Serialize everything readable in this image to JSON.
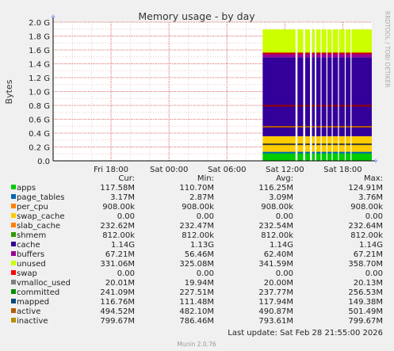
{
  "chart_data": {
    "type": "area",
    "title": "Memory usage - by day",
    "ylabel": "Bytes",
    "xlabel": "",
    "watermark": "RRDTOOL / TOBI OETIKER",
    "footer": "Munin 2.0.76",
    "last_update": "Last update: Sat Feb 28 21:55:00 2026",
    "ylim": [
      0,
      2.0
    ],
    "yunit": "G",
    "yticks": [
      {
        "v": 0.0,
        "label": "0.0"
      },
      {
        "v": 0.2,
        "label": "0.2 G"
      },
      {
        "v": 0.4,
        "label": "0.4 G"
      },
      {
        "v": 0.6,
        "label": "0.6 G"
      },
      {
        "v": 0.8,
        "label": "0.8 G"
      },
      {
        "v": 1.0,
        "label": "1.0 G"
      },
      {
        "v": 1.2,
        "label": "1.2 G"
      },
      {
        "v": 1.4,
        "label": "1.4 G"
      },
      {
        "v": 1.6,
        "label": "1.6 G"
      },
      {
        "v": 1.8,
        "label": "1.8 G"
      },
      {
        "v": 2.0,
        "label": "2.0 G"
      }
    ],
    "xlim_hours": [
      -30,
      3
    ],
    "xticks": [
      {
        "h": -24,
        "label": "Fri 18:00"
      },
      {
        "h": -18,
        "label": "Sat 00:00"
      },
      {
        "h": -12,
        "label": "Sat 06:00"
      },
      {
        "h": -6,
        "label": "Sat 12:00"
      },
      {
        "h": 0,
        "label": "Sat 18:00"
      }
    ],
    "data_start_hours": -8.3,
    "gap_hours": [
      [
        -4.9,
        -4.7
      ],
      [
        -4.1,
        -3.9
      ],
      [
        -3.4,
        -3.2
      ],
      [
        -2.9,
        -2.75
      ],
      [
        -2.3,
        -2.2
      ],
      [
        -1.7,
        -1.6
      ],
      [
        -1.15,
        -1.05
      ],
      [
        -0.5,
        -0.4
      ],
      [
        0.2,
        0.3
      ],
      [
        0.8,
        0.9
      ]
    ],
    "stack_G": [
      {
        "name": "apps",
        "color": "#00cc00",
        "value": 0.117
      },
      {
        "name": "page_tables",
        "color": "#0066b3",
        "value": 0.003
      },
      {
        "name": "per_cpu",
        "color": "#ff8000",
        "value": 0.001
      },
      {
        "name": "swap_cache",
        "color": "#ffcc00",
        "value": 0.0
      },
      {
        "name": "slab_cache",
        "color": "#ffcc00",
        "value": 0.233
      },
      {
        "name": "shmem",
        "color": "#ffcc00",
        "value": 0.001
      },
      {
        "name": "cache",
        "color": "#330099",
        "value": 1.14
      },
      {
        "name": "buffers",
        "color": "#990099",
        "value": 0.06
      },
      {
        "name": "unused",
        "color": "#ccff00",
        "value": 0.34
      }
    ],
    "lines_G": [
      {
        "name": "committed",
        "color": "#3a3a3a",
        "value": 0.238
      },
      {
        "name": "mapped",
        "color": "#0066b3",
        "value": 0.118
      },
      {
        "name": "active",
        "color": "#b35a00",
        "value": 0.491
      },
      {
        "name": "inactive",
        "color": "#990000",
        "value": 0.794
      },
      {
        "name": "swap_total_top",
        "color": "#cc0000",
        "value": 1.55
      }
    ],
    "legend_headers": [
      "Cur:",
      "Min:",
      "Avg:",
      "Max:"
    ],
    "legend": [
      {
        "name": "apps",
        "color": "#00cc00",
        "cur": "117.58M",
        "min": "110.70M",
        "avg": "116.25M",
        "max": "124.91M"
      },
      {
        "name": "page_tables",
        "color": "#0066b3",
        "cur": "3.17M",
        "min": "2.87M",
        "avg": "3.09M",
        "max": "3.76M"
      },
      {
        "name": "per_cpu",
        "color": "#ff8000",
        "cur": "908.00k",
        "min": "908.00k",
        "avg": "908.00k",
        "max": "908.00k"
      },
      {
        "name": "swap_cache",
        "color": "#ffcc00",
        "cur": "0.00",
        "min": "0.00",
        "avg": "0.00",
        "max": "0.00"
      },
      {
        "name": "slab_cache",
        "color": "#ff8000",
        "cur": "232.62M",
        "min": "232.47M",
        "avg": "232.54M",
        "max": "232.64M"
      },
      {
        "name": "shmem",
        "color": "#339900",
        "cur": "812.00k",
        "min": "812.00k",
        "avg": "812.00k",
        "max": "812.00k"
      },
      {
        "name": "cache",
        "color": "#330099",
        "cur": "1.14G",
        "min": "1.13G",
        "avg": "1.14G",
        "max": "1.14G"
      },
      {
        "name": "buffers",
        "color": "#990099",
        "cur": "67.21M",
        "min": "56.46M",
        "avg": "62.40M",
        "max": "67.21M"
      },
      {
        "name": "unused",
        "color": "#ccff00",
        "cur": "331.06M",
        "min": "325.08M",
        "avg": "341.59M",
        "max": "358.70M"
      },
      {
        "name": "swap",
        "color": "#ff0000",
        "cur": "0.00",
        "min": "0.00",
        "avg": "0.00",
        "max": "0.00"
      },
      {
        "name": "vmalloc_used",
        "color": "#808080",
        "cur": "20.01M",
        "min": "19.94M",
        "avg": "20.00M",
        "max": "20.13M"
      },
      {
        "name": "committed",
        "color": "#008f00",
        "cur": "241.09M",
        "min": "227.51M",
        "avg": "237.77M",
        "max": "256.53M"
      },
      {
        "name": "mapped",
        "color": "#00487d",
        "cur": "116.76M",
        "min": "111.48M",
        "avg": "117.94M",
        "max": "149.38M"
      },
      {
        "name": "active",
        "color": "#b35a00",
        "cur": "494.52M",
        "min": "482.10M",
        "avg": "490.87M",
        "max": "501.49M"
      },
      {
        "name": "inactive",
        "color": "#b38f00",
        "cur": "799.67M",
        "min": "786.46M",
        "avg": "793.61M",
        "max": "799.67M"
      }
    ]
  }
}
